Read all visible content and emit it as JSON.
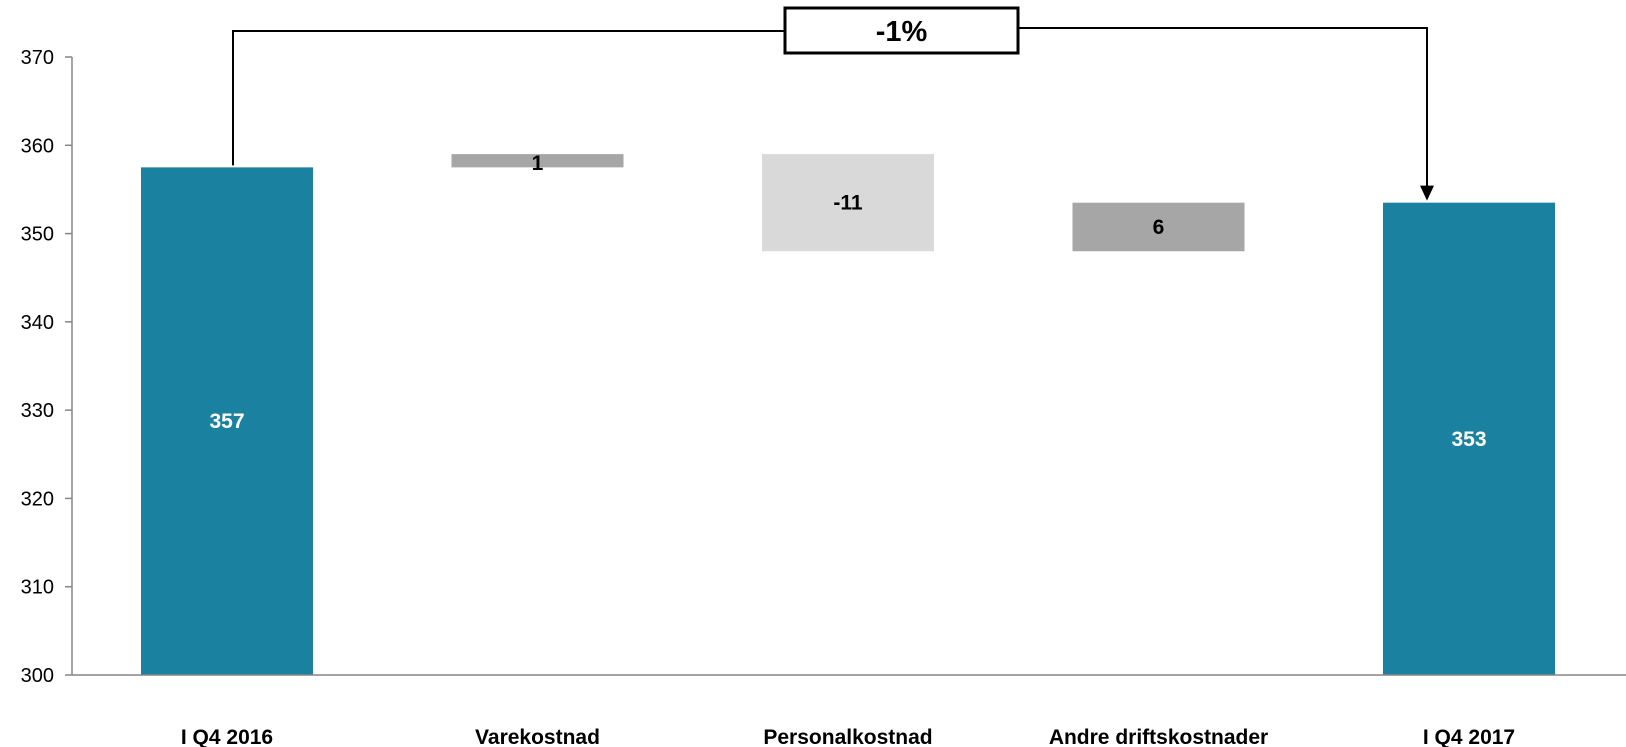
{
  "chart_data": {
    "type": "waterfall",
    "categories": [
      "I Q4 2016",
      "Varekostnad",
      "Personalkostnad",
      "Andre driftskostnader",
      "I Q4 2017"
    ],
    "bars": [
      {
        "category": "I Q4 2016",
        "kind": "total",
        "start": 300,
        "end": 357.5,
        "label": "357",
        "color": "#1a82a0",
        "label_color": "#ffffff"
      },
      {
        "category": "Varekostnad",
        "kind": "delta",
        "start": 357.5,
        "end": 359,
        "label": "1",
        "color": "#a6a6a6",
        "label_color": "#000000"
      },
      {
        "category": "Personalkostnad",
        "kind": "delta",
        "start": 359,
        "end": 348,
        "label": "-11",
        "color": "#d9d9d9",
        "label_color": "#000000"
      },
      {
        "category": "Andre driftskostnader",
        "kind": "delta",
        "start": 348,
        "end": 353.5,
        "label": "6",
        "color": "#a6a6a6",
        "label_color": "#000000"
      },
      {
        "category": "I Q4 2017",
        "kind": "total",
        "start": 300,
        "end": 353.5,
        "label": "353",
        "color": "#1a82a0",
        "label_color": "#ffffff"
      }
    ],
    "ylim": [
      300,
      370
    ],
    "yticks": [
      "300",
      "310",
      "320",
      "330",
      "340",
      "350",
      "360",
      "370"
    ],
    "grid": false,
    "annotation": {
      "text": "-1%",
      "from": "I Q4 2016",
      "to": "I Q4 2017"
    }
  }
}
